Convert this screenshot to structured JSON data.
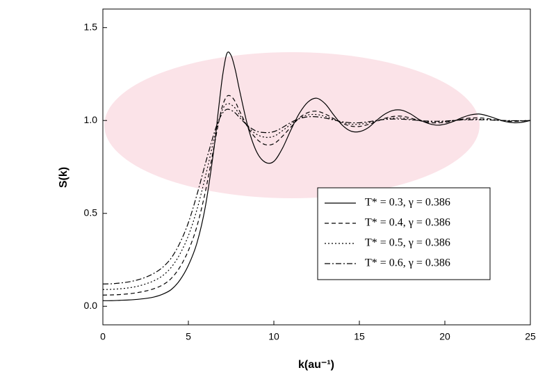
{
  "chart_data": {
    "type": "line",
    "x_label": "k(au⁻¹)",
    "y_label": "S(k)",
    "xlim": [
      0,
      25
    ],
    "ylim": [
      -0.1,
      1.6
    ],
    "xticks": [
      0,
      5,
      10,
      15,
      20,
      25
    ],
    "yticks": [
      {
        "value": 0,
        "label": "0.0"
      },
      0.5,
      {
        "value": 1,
        "label": "1.0"
      },
      1.5
    ],
    "legend": "lower right",
    "x": [
      0,
      0.5,
      1,
      1.5,
      2,
      2.5,
      3,
      3.5,
      4,
      4.5,
      5,
      5.5,
      6,
      6.5,
      6.75,
      7,
      7.25,
      7.5,
      7.75,
      8,
      8.5,
      9,
      9.5,
      10,
      10.5,
      11,
      11.5,
      12,
      12.5,
      13,
      13.5,
      14,
      14.5,
      15,
      15.5,
      16,
      16.5,
      17,
      17.5,
      18,
      18.5,
      19,
      19.5,
      20,
      20.5,
      21,
      21.5,
      22,
      22.5,
      23,
      23.5,
      24,
      24.5,
      25
    ],
    "series": [
      {
        "name": "T* = 0.3, γ = 0.386",
        "color": "#000000",
        "linestyle": "solid",
        "values": [
          0.03,
          0.03,
          0.032,
          0.034,
          0.037,
          0.042,
          0.05,
          0.065,
          0.09,
          0.14,
          0.22,
          0.34,
          0.54,
          0.85,
          1.05,
          1.24,
          1.36,
          1.35,
          1.27,
          1.16,
          0.96,
          0.83,
          0.775,
          0.78,
          0.85,
          0.95,
          1.04,
          1.1,
          1.12,
          1.09,
          1.03,
          0.975,
          0.943,
          0.94,
          0.96,
          1.0,
          1.035,
          1.055,
          1.055,
          1.035,
          1.005,
          0.985,
          0.975,
          0.98,
          0.995,
          1.015,
          1.03,
          1.035,
          1.025,
          1.01,
          0.995,
          0.988,
          0.99,
          1.0
        ]
      },
      {
        "name": "T* = 0.4, γ = 0.386",
        "color": "#000000",
        "linestyle": "dashed",
        "values": [
          0.06,
          0.061,
          0.063,
          0.067,
          0.073,
          0.082,
          0.095,
          0.115,
          0.15,
          0.21,
          0.3,
          0.43,
          0.62,
          0.86,
          0.98,
          1.08,
          1.13,
          1.13,
          1.1,
          1.05,
          0.96,
          0.9,
          0.87,
          0.875,
          0.915,
          0.965,
          1.015,
          1.043,
          1.05,
          1.035,
          1.01,
          0.985,
          0.97,
          0.968,
          0.978,
          0.995,
          1.012,
          1.022,
          1.023,
          1.013,
          1.0,
          0.99,
          0.987,
          0.99,
          0.998,
          1.007,
          1.013,
          1.014,
          1.01,
          1.003,
          0.997,
          0.995,
          0.997,
          1.0
        ]
      },
      {
        "name": "T* = 0.5, γ = 0.386",
        "color": "#000000",
        "linestyle": "dotted",
        "values": [
          0.09,
          0.091,
          0.094,
          0.099,
          0.107,
          0.12,
          0.138,
          0.165,
          0.21,
          0.28,
          0.38,
          0.52,
          0.7,
          0.9,
          0.99,
          1.06,
          1.09,
          1.085,
          1.065,
          1.03,
          0.965,
          0.925,
          0.91,
          0.915,
          0.945,
          0.98,
          1.012,
          1.03,
          1.032,
          1.022,
          1.005,
          0.99,
          0.98,
          0.98,
          0.987,
          0.998,
          1.008,
          1.013,
          1.013,
          1.007,
          1.0,
          0.995,
          0.993,
          0.995,
          1.0,
          1.004,
          1.007,
          1.007,
          1.005,
          1.002,
          0.999,
          0.998,
          0.999,
          1.0
        ]
      },
      {
        "name": "T* = 0.6, γ = 0.386",
        "color": "#000000",
        "linestyle": "dashdot",
        "values": [
          0.12,
          0.121,
          0.125,
          0.131,
          0.141,
          0.156,
          0.178,
          0.21,
          0.26,
          0.34,
          0.45,
          0.6,
          0.77,
          0.93,
          0.995,
          1.04,
          1.06,
          1.055,
          1.04,
          1.015,
          0.97,
          0.942,
          0.935,
          0.94,
          0.962,
          0.99,
          1.01,
          1.02,
          1.02,
          1.013,
          1.003,
          0.993,
          0.988,
          0.988,
          0.993,
          1.0,
          1.006,
          1.008,
          1.007,
          1.004,
          1.0,
          0.997,
          0.996,
          0.997,
          1.0,
          1.003,
          1.004,
          1.004,
          1.003,
          1.001,
          1.0,
          0.999,
          0.999,
          1.0
        ]
      }
    ]
  }
}
